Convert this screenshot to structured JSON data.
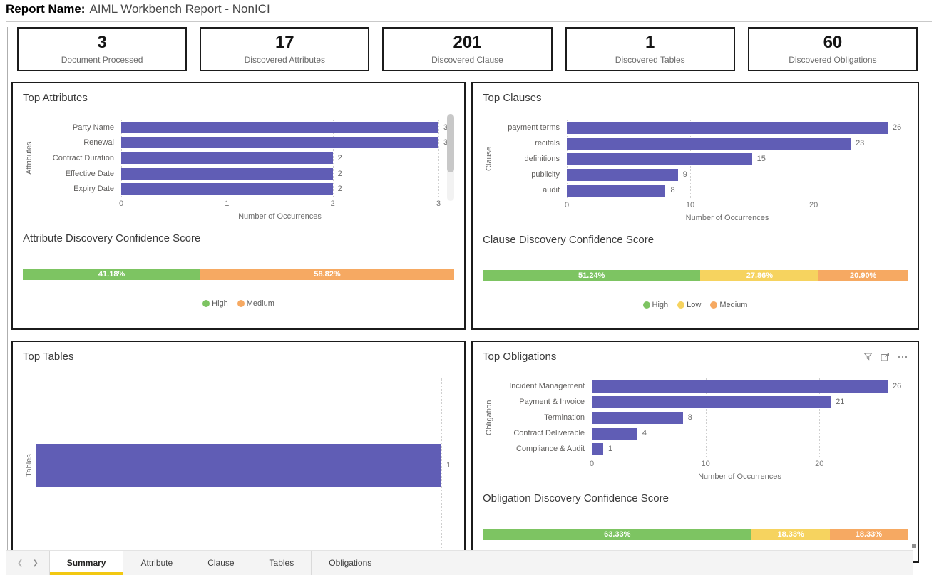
{
  "header": {
    "report_name_label": "Report Name:",
    "report_name_value": "AIML Workbench Report - NonICI"
  },
  "kpi_cards": [
    {
      "value": "3",
      "label": "Document Processed"
    },
    {
      "value": "17",
      "label": "Discovered Attributes"
    },
    {
      "value": "201",
      "label": "Discovered Clause"
    },
    {
      "value": "1",
      "label": "Discovered Tables"
    },
    {
      "value": "60",
      "label": "Discovered Obligations"
    }
  ],
  "panels": {
    "top_attributes": {
      "title": "Top Attributes",
      "confidence_title": "Attribute Discovery Confidence Score"
    },
    "top_clauses": {
      "title": "Top Clauses",
      "confidence_title": "Clause Discovery Confidence Score"
    },
    "top_tables": {
      "title": "Top Tables"
    },
    "top_obligations": {
      "title": "Top Obligations",
      "confidence_title": "Obligation Discovery Confidence Score"
    }
  },
  "chart_data": [
    {
      "id": "top_attributes",
      "type": "bar",
      "orientation": "horizontal",
      "title": "Top Attributes",
      "categories": [
        "Party Name",
        "Renewal",
        "Contract Duration",
        "Effective Date",
        "Expiry Date"
      ],
      "values": [
        3,
        3,
        2,
        2,
        2
      ],
      "xlabel": "Number of Occurrences",
      "ylabel": "Attributes",
      "xlim": [
        0,
        3
      ],
      "xticks": [
        0,
        1,
        2,
        3
      ],
      "bar_color": "#605DB5",
      "grid": true,
      "scrollbar": true
    },
    {
      "id": "top_clauses",
      "type": "bar",
      "orientation": "horizontal",
      "title": "Top Clauses",
      "categories": [
        "payment terms",
        "recitals",
        "definitions",
        "publicity",
        "audit"
      ],
      "values": [
        26,
        23,
        15,
        9,
        8
      ],
      "xlabel": "Number of Occurrences",
      "ylabel": "Clause",
      "xlim": [
        0,
        26
      ],
      "xticks": [
        0,
        10,
        20
      ],
      "bar_color": "#605DB5",
      "grid": true,
      "scrollbar": false
    },
    {
      "id": "top_tables",
      "type": "bar",
      "orientation": "horizontal",
      "title": "Top Tables",
      "categories": [
        ""
      ],
      "values": [
        1
      ],
      "xlabel": "",
      "ylabel": "Tables",
      "xlim": [
        0,
        1
      ],
      "xticks": [],
      "bar_color": "#605DB5",
      "grid": true,
      "scrollbar": false
    },
    {
      "id": "top_obligations",
      "type": "bar",
      "orientation": "horizontal",
      "title": "Top Obligations",
      "categories": [
        "Incident Management",
        "Payment & Invoice",
        "Termination",
        "Contract Deliverable",
        "Compliance & Audit"
      ],
      "values": [
        26,
        21,
        8,
        4,
        1
      ],
      "xlabel": "Number of Occurrences",
      "ylabel": "Obligation",
      "xlim": [
        0,
        26
      ],
      "xticks": [
        0,
        10,
        20
      ],
      "bar_color": "#605DB5",
      "grid": true,
      "scrollbar": false
    },
    {
      "id": "attribute_confidence",
      "type": "stacked_bar",
      "title": "Attribute Discovery Confidence Score",
      "segments": [
        {
          "label": "High",
          "value": 41.18,
          "display": "41.18%",
          "color": "#7DC462"
        },
        {
          "label": "Medium",
          "value": 58.82,
          "display": "58.82%",
          "color": "#F6A962"
        }
      ],
      "legend_visible": true
    },
    {
      "id": "clause_confidence",
      "type": "stacked_bar",
      "title": "Clause Discovery Confidence Score",
      "segments": [
        {
          "label": "High",
          "value": 51.24,
          "display": "51.24%",
          "color": "#7DC462"
        },
        {
          "label": "Low",
          "value": 27.86,
          "display": "27.86%",
          "color": "#F6D35F"
        },
        {
          "label": "Medium",
          "value": 20.9,
          "display": "20.90%",
          "color": "#F6A962"
        }
      ],
      "legend_visible": true
    },
    {
      "id": "obligation_confidence",
      "type": "stacked_bar",
      "title": "Obligation Discovery Confidence Score",
      "segments": [
        {
          "label": "High",
          "value": 63.33,
          "display": "63.33%",
          "color": "#7DC462"
        },
        {
          "label": "Low",
          "value": 18.33,
          "display": "18.33%",
          "color": "#F6D35F"
        },
        {
          "label": "Medium",
          "value": 18.33,
          "display": "18.33%",
          "color": "#F6A962"
        }
      ],
      "legend_visible": false
    }
  ],
  "visual_action_icons": [
    "filter-icon",
    "focus-mode-icon",
    "more-options-icon"
  ],
  "tab_bar": {
    "tabs": [
      {
        "label": "Summary",
        "active": true
      },
      {
        "label": "Attribute",
        "active": false
      },
      {
        "label": "Clause",
        "active": false
      },
      {
        "label": "Tables",
        "active": false
      },
      {
        "label": "Obligations",
        "active": false
      }
    ]
  },
  "colors": {
    "bar_purple": "#605DB5",
    "high_green": "#7DC462",
    "low_yellow": "#F6D35F",
    "medium_orange": "#F6A962",
    "active_tab_underline": "#F2C811"
  }
}
